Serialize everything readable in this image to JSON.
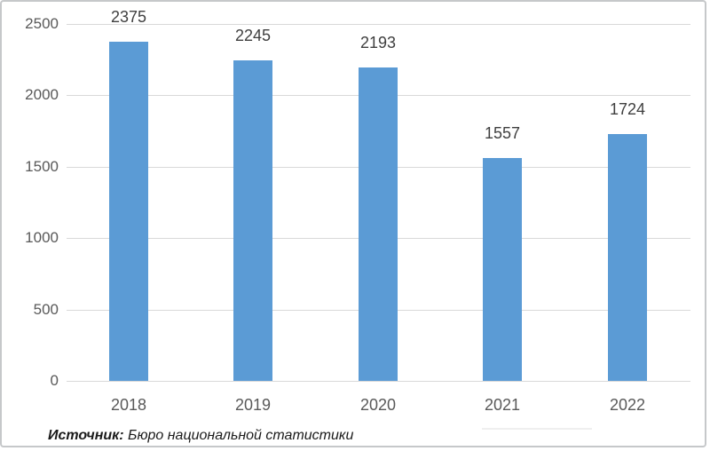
{
  "chart_data": {
    "type": "bar",
    "categories": [
      "2018",
      "2019",
      "2020",
      "2021",
      "2022"
    ],
    "values": [
      2375,
      2245,
      2193,
      1557,
      1724
    ],
    "title": "",
    "xlabel": "",
    "ylabel": "",
    "ylim": [
      0,
      2500
    ],
    "yticks": [
      0,
      500,
      1000,
      1500,
      2000,
      2500
    ],
    "grid": true,
    "legend": "none",
    "bar_color": "#5b9bd5",
    "value_label_color": "#3f3f3f",
    "axis_text_color": "#595959",
    "gridline_color": "#d9d9d9"
  },
  "source": {
    "label": "Источник:",
    "text": " Бюро национальной статистики"
  }
}
